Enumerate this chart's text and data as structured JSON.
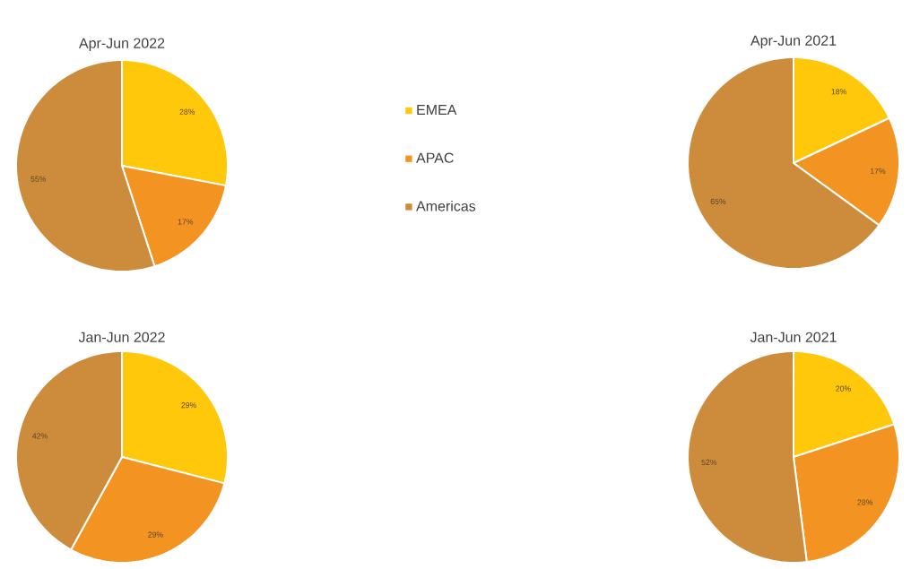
{
  "chart_data": [
    {
      "type": "pie",
      "title": "Apr-Jun 2022",
      "categories": [
        "EMEA",
        "APAC",
        "Americas"
      ],
      "values": [
        28,
        17,
        55
      ],
      "value_labels": [
        "28%",
        "17%",
        "55%"
      ],
      "colors": [
        "#ffc80a",
        "#f39422",
        "#cd8c3b"
      ],
      "legend": "right"
    },
    {
      "type": "pie",
      "title": "Apr-Jun 2021",
      "values": [
        18,
        17,
        65
      ],
      "value_labels": [
        "18%",
        "17%",
        "65%"
      ],
      "colors": [
        "#ffc80a",
        "#f39422",
        "#cd8c3b"
      ]
    },
    {
      "type": "pie",
      "title": "Jan-Jun 2022",
      "values": [
        29,
        29,
        42
      ],
      "value_labels": [
        "29%",
        "29%",
        "42%"
      ],
      "colors": [
        "#ffc80a",
        "#f39422",
        "#cd8c3b"
      ]
    },
    {
      "type": "pie",
      "title": "Jan-Jun 2021",
      "values": [
        20,
        28,
        52
      ],
      "value_labels": [
        "20%",
        "28%",
        "52%"
      ],
      "colors": [
        "#ffc80a",
        "#f39422",
        "#cd8c3b"
      ]
    }
  ]
}
